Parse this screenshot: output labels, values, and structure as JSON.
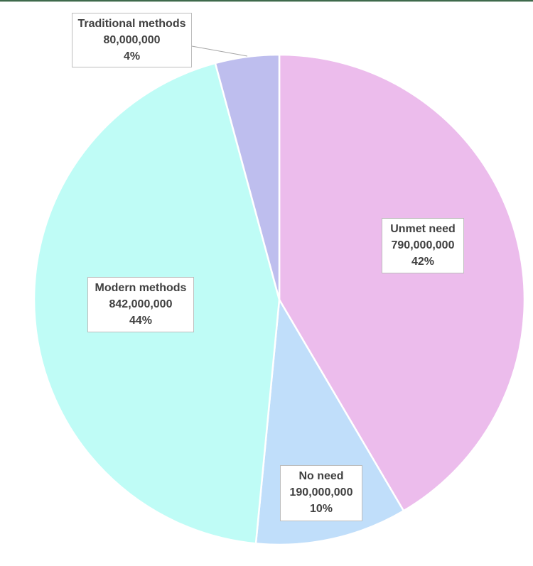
{
  "chart_data": {
    "type": "pie",
    "title": "",
    "start_angle_deg": 0,
    "direction": "clockwise",
    "categories": [
      "Unmet need",
      "No need",
      "Modern methods",
      "Traditional methods"
    ],
    "values": [
      790000000,
      190000000,
      842000000,
      80000000
    ],
    "percent_labels": [
      "42%",
      "10%",
      "44%",
      "4%"
    ],
    "colors": [
      "#ECBCEC",
      "#C0DEFA",
      "#BFFCF6",
      "#BEBEEE"
    ],
    "legend": "none",
    "data_labels": [
      {
        "name": "Unmet need",
        "value": "790,000,000",
        "percent": "42%"
      },
      {
        "name": "No need",
        "value": "190,000,000",
        "percent": "10%"
      },
      {
        "name": "Modern methods",
        "value": "842,000,000",
        "percent": "44%"
      },
      {
        "name": "Traditional methods",
        "value": "80,000,000",
        "percent": "4%"
      }
    ]
  },
  "labels": {
    "unmet": {
      "name": "Unmet need",
      "value": "790,000,000",
      "percent": "42%"
    },
    "noneed": {
      "name": "No need",
      "value": "190,000,000",
      "percent": "10%"
    },
    "modern": {
      "name": "Modern methods",
      "value": "842,000,000",
      "percent": "44%"
    },
    "traditional": {
      "name": "Traditional methods",
      "value": "80,000,000",
      "percent": "4%"
    }
  }
}
